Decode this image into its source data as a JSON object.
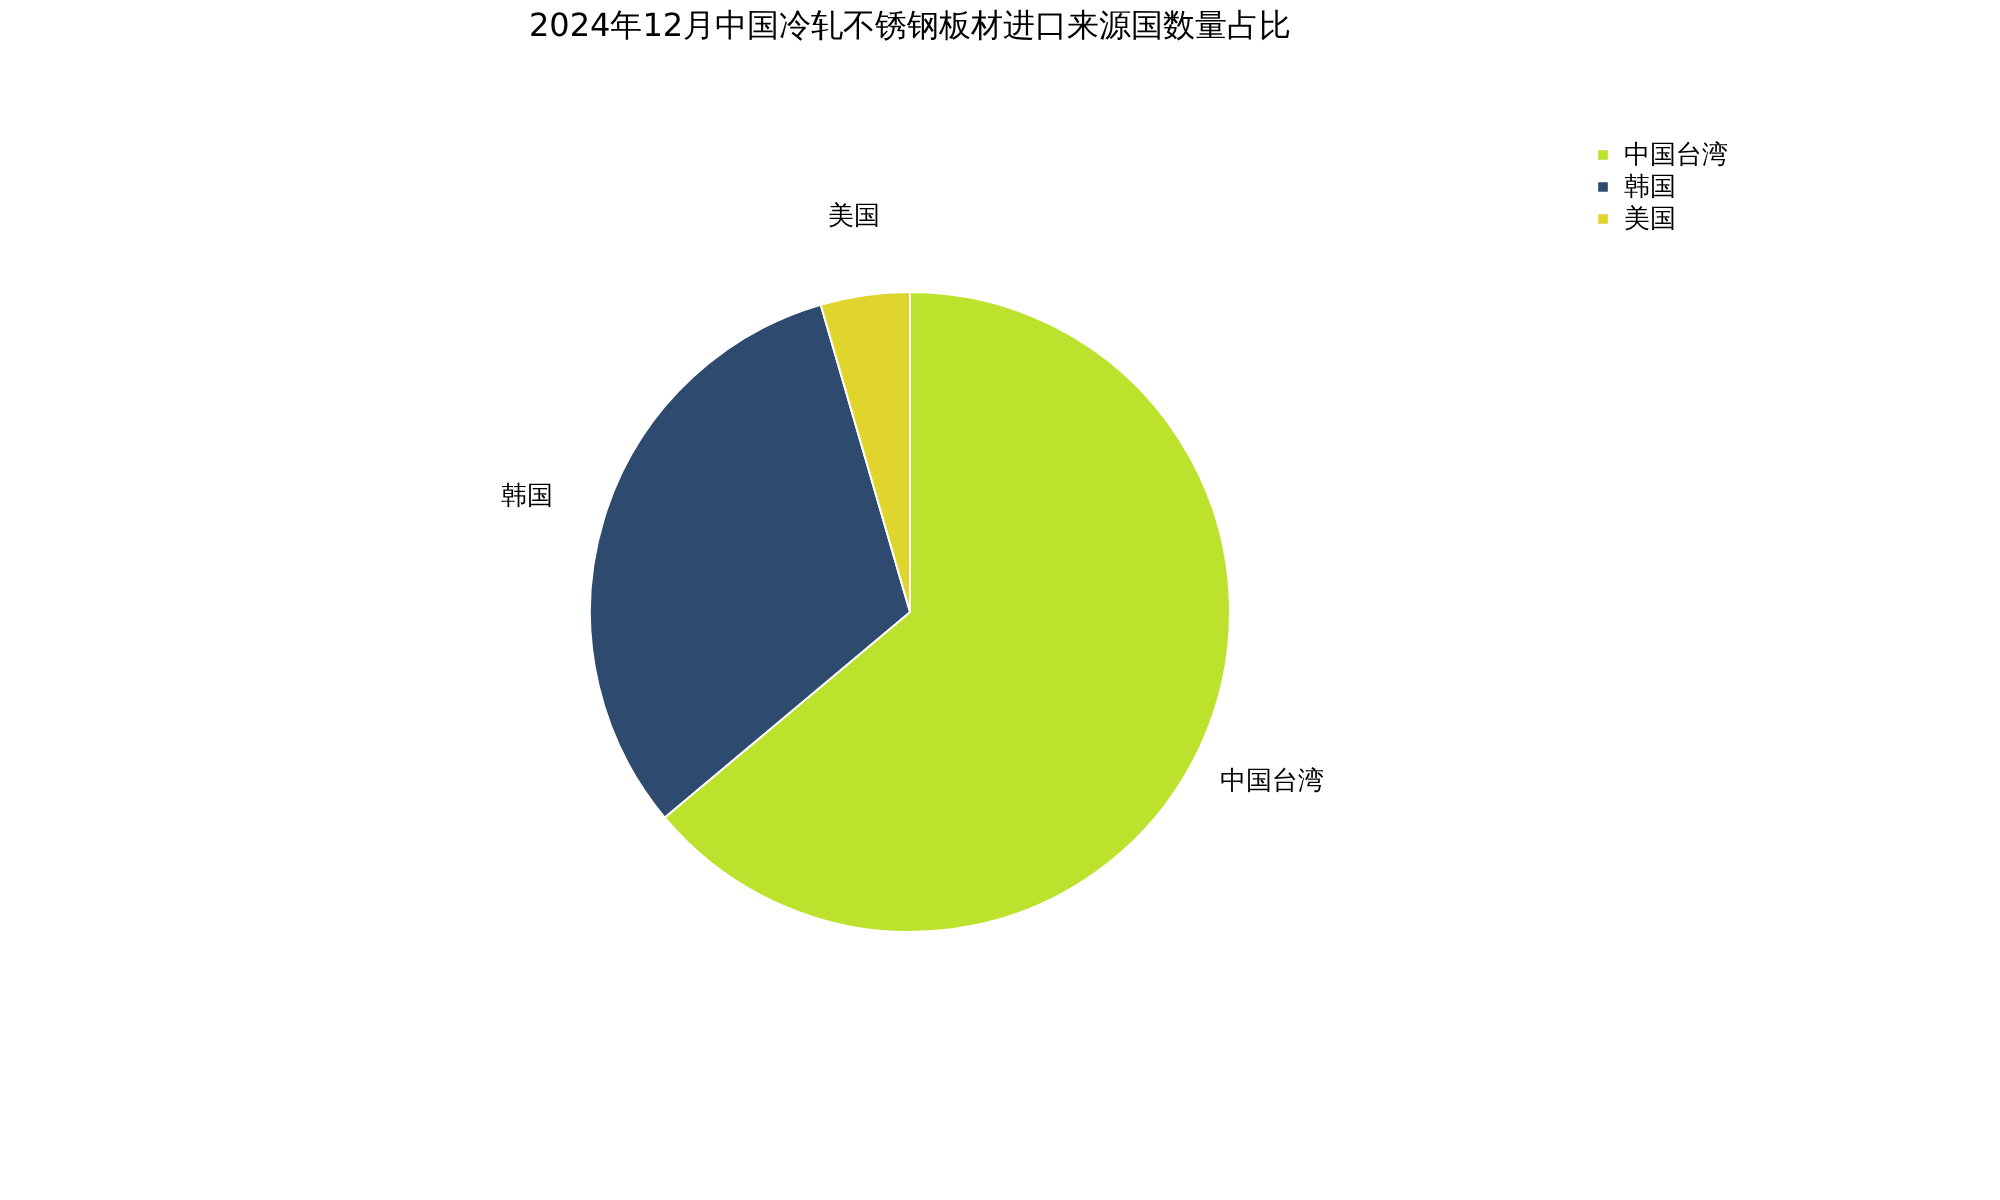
{
  "chart_data": {
    "type": "pie",
    "title": "2024年12月中国冷轧不锈钢板材进口来源国数量占比",
    "categories": [
      "中国台湾",
      "韩国",
      "美国"
    ],
    "values": [
      63.9,
      31.6,
      4.5
    ],
    "colors": [
      "#bde22e",
      "#2e4a6e",
      "#e0d52c"
    ],
    "legend": "top right"
  }
}
